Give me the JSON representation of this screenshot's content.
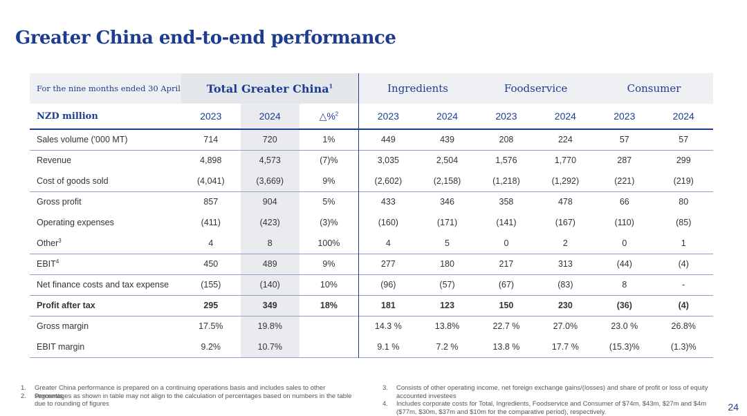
{
  "title": "Greater China end-to-end performance",
  "table": {
    "period": "For the nine months ended 30 April",
    "groups": [
      {
        "label": "Total Greater China",
        "note": "1",
        "span": 3
      },
      {
        "label": "Ingredients",
        "span": 2
      },
      {
        "label": "Foodservice",
        "span": 2
      },
      {
        "label": "Consumer",
        "span": 2
      }
    ],
    "unit": "NZD million",
    "columns": [
      {
        "label": "2023"
      },
      {
        "label": "2024"
      },
      {
        "label": "△%",
        "note": "2"
      },
      {
        "label": "2023"
      },
      {
        "label": "2024"
      },
      {
        "label": "2023"
      },
      {
        "label": "2024"
      },
      {
        "label": "2023"
      },
      {
        "label": "2024"
      }
    ],
    "rows": [
      {
        "label": "Sales volume ('000 MT)",
        "cells": [
          "714",
          "720",
          "1%",
          "449",
          "439",
          "208",
          "224",
          "57",
          "57"
        ]
      },
      {
        "label": "Revenue",
        "cells": [
          "4,898",
          "4,573",
          "(7)%",
          "3,035",
          "2,504",
          "1,576",
          "1,770",
          "287",
          "299"
        ]
      },
      {
        "label": "Cost of goods sold",
        "cells": [
          "(4,041)",
          "(3,669)",
          "9%",
          "(2,602)",
          "(2,158)",
          "(1,218)",
          "(1,292)",
          "(221)",
          "(219)"
        ]
      },
      {
        "label": "Gross profit",
        "cells": [
          "857",
          "904",
          "5%",
          "433",
          "346",
          "358",
          "478",
          "66",
          "80"
        ]
      },
      {
        "label": "Operating expenses",
        "cells": [
          "(411)",
          "(423)",
          "(3)%",
          "(160)",
          "(171)",
          "(141)",
          "(167)",
          "(110)",
          "(85)"
        ]
      },
      {
        "label": "Other",
        "note": "3",
        "cells": [
          "4",
          "8",
          "100%",
          "4",
          "5",
          "0",
          "2",
          "0",
          "1"
        ]
      },
      {
        "label": "EBIT",
        "note": "4",
        "cells": [
          "450",
          "489",
          "9%",
          "277",
          "180",
          "217",
          "313",
          "(44)",
          "(4)"
        ]
      },
      {
        "label": "Net finance costs and tax expense",
        "cells": [
          "(155)",
          "(140)",
          "10%",
          "(96)",
          "(57)",
          "(67)",
          "(83)",
          "8",
          "-"
        ]
      },
      {
        "label": "Profit after tax",
        "cells": [
          "295",
          "349",
          "18%",
          "181",
          "123",
          "150",
          "230",
          "(36)",
          "(4)"
        ]
      },
      {
        "label": "Gross margin",
        "cells": [
          "17.5%",
          "19.8%",
          null,
          "14.3 %",
          "13.8%",
          "22.7 %",
          "27.0%",
          "23.0 %",
          "26.8%"
        ]
      },
      {
        "label": "EBIT margin",
        "cells": [
          "9.2%",
          "10.7%",
          null,
          "9.1 %",
          "7.2 %",
          "13.8 %",
          "17.7 %",
          "(15.3)%",
          "(1.3)%"
        ]
      }
    ]
  },
  "footnotes": [
    {
      "num": "1.",
      "text": "Greater China performance is prepared on a continuing operations basis and includes sales to other segments"
    },
    {
      "num": "2.",
      "text": "Percentages as shown in table may not align to the calculation of percentages based on numbers in the table due to rounding of figures"
    },
    {
      "num": "3.",
      "text": "Consists of other operating income, net foreign exchange gains/(losses) and share of profit or loss of equity accounted investees"
    },
    {
      "num": "4.",
      "text": "Includes corporate costs for Total, Ingredients, Foodservice and Consumer of $74m, $43m, $27m and $4m ($77m, $30m, $37m and $10m for the comparative period), respectively."
    }
  ],
  "page_number": "24"
}
